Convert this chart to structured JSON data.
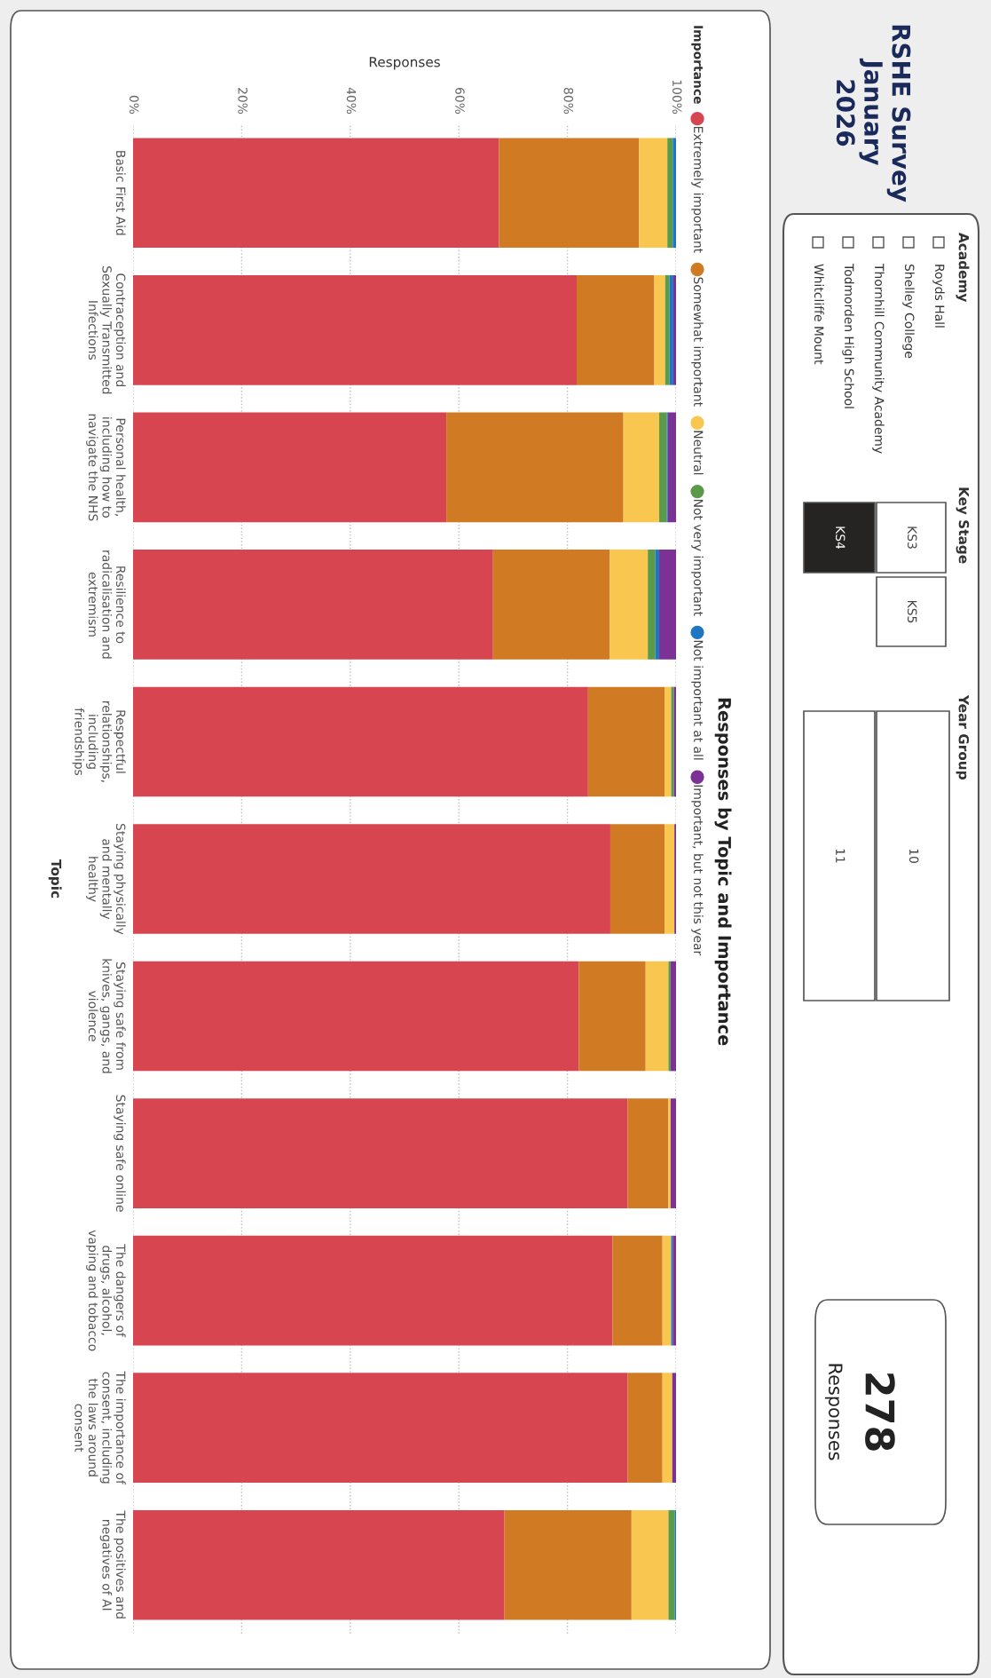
{
  "chart_data": {
    "type": "bar",
    "orientation": "horizontal",
    "stacked": true,
    "title": "Responses by Topic and Importance",
    "xlabel": "Responses",
    "ylabel": "Topic",
    "legend_title": "Importance",
    "legend": "right",
    "grid": "x",
    "categories": [
      "Basic First Aid",
      "Contraception and\nSexually Transmitted\nInfections",
      "Personal health,\nincluding how to\nnavigate the NHS",
      "Resilience to\nradicalisation and\nextremism",
      "Respectful\nrelationships,\nincluding\nfriendships",
      "Staying physically\nand mentally\nhealthy",
      "Staying safe from\nknives, gangs, and\nviolence",
      "Staying safe online",
      "The dangers of\ndrugs, alcohol,\nvaping and tobacco",
      "The importance of\nconsent, including\nthe laws around\nconsent",
      "The positives and\nnegatives of AI"
    ],
    "xlim": [
      0,
      100
    ],
    "xticks": [
      {
        "value": 0,
        "label": "0%"
      },
      {
        "value": 20,
        "label": "20%"
      },
      {
        "value": 40,
        "label": "40%"
      },
      {
        "value": 60,
        "label": "60%"
      },
      {
        "value": 80,
        "label": "80%"
      },
      {
        "value": 100,
        "label": "100%"
      }
    ],
    "series": [
      {
        "name": "Extremely important",
        "color": "#d64550",
        "values": [
          67.4,
          81.7,
          57.7,
          66.3,
          83.8,
          87.9,
          82.1,
          91.1,
          88.3,
          91.1,
          68.4
        ]
      },
      {
        "name": "Somewhat important",
        "color": "#d07b24",
        "values": [
          25.8,
          14.3,
          32.6,
          21.5,
          14.1,
          10.0,
          12.3,
          7.5,
          9.2,
          6.4,
          23.4
        ]
      },
      {
        "name": "Neutral",
        "color": "#f9c74f",
        "values": [
          5.2,
          2.0,
          6.6,
          7.0,
          1.2,
          1.8,
          4.2,
          0.4,
          1.6,
          1.8,
          6.8
        ]
      },
      {
        "name": "Not very important",
        "color": "#5a9a48",
        "values": [
          1.0,
          0.8,
          1.4,
          1.4,
          0.5,
          0,
          0.4,
          0,
          0,
          0,
          1.2
        ]
      },
      {
        "name": "Not important at all",
        "color": "#1f77c4",
        "values": [
          0.6,
          0.7,
          0.2,
          0.7,
          0,
          0,
          0,
          0,
          0.3,
          0,
          0.2
        ]
      },
      {
        "name": "Important, but not this year",
        "color": "#7b3294",
        "values": [
          0,
          0.5,
          1.5,
          3.1,
          0.4,
          0.3,
          1.0,
          1.0,
          0.6,
          0.7,
          0
        ]
      }
    ],
    "annotations": [
      "RSHE Survey\nJanuary\n2026",
      "Academy",
      "Royds Hall",
      "Shelley College",
      "Thornhill Community Academy",
      "Todmorden High School",
      "Whitcliffe Mount",
      "Key Stage",
      "KS3",
      "KS4",
      "KS5",
      "Year Group",
      "10",
      "11",
      "278",
      "Responses"
    ]
  }
}
